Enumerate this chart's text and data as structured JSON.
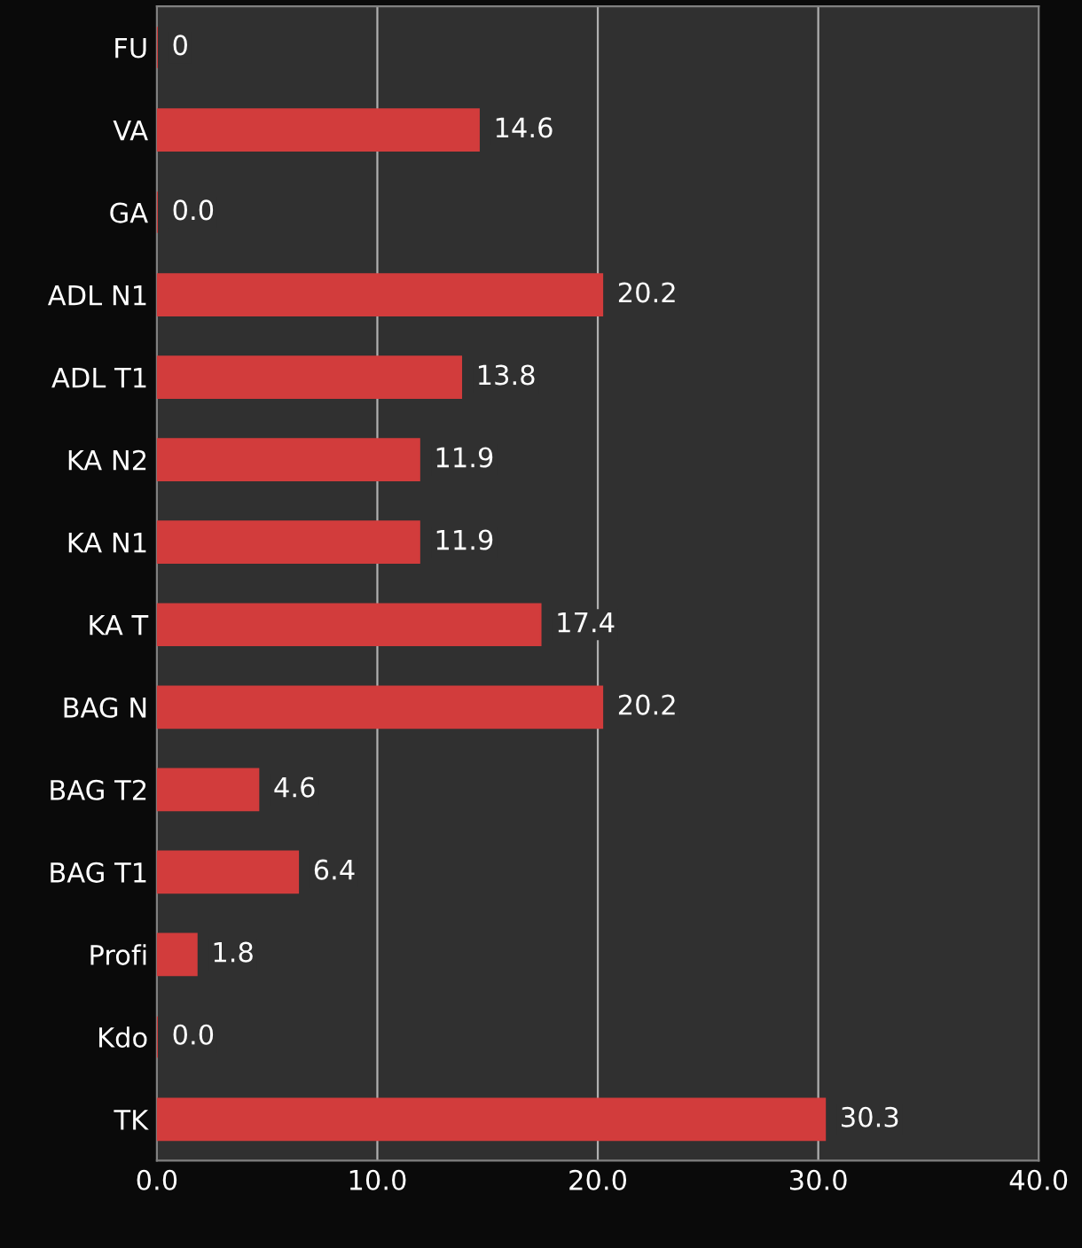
{
  "chart_data": {
    "type": "bar",
    "orientation": "horizontal",
    "categories": [
      "FU",
      "VA",
      "GA",
      "ADL N1",
      "ADL T1",
      "KA N2",
      "KA N1",
      "KA T",
      "BAG N",
      "BAG T2",
      "BAG T1",
      "Profi",
      "Kdo",
      "TK"
    ],
    "values": [
      0,
      14.6,
      0.0,
      20.2,
      13.8,
      11.9,
      11.9,
      17.4,
      20.2,
      4.6,
      6.4,
      1.8,
      0.0,
      30.3
    ],
    "value_labels": [
      "0",
      "14.6",
      "0.0",
      "20.2",
      "13.8",
      "11.9",
      "11.9",
      "17.4",
      "20.2",
      "4.6",
      "6.4",
      "1.8",
      "0.0",
      "30.3"
    ],
    "color": "#d23c3c",
    "xlim": [
      0,
      40
    ],
    "xticks": [
      {
        "value": 0,
        "label": "0.0"
      },
      {
        "value": 10,
        "label": "10.0"
      },
      {
        "value": 20,
        "label": "20.0"
      },
      {
        "value": 30,
        "label": "30.0"
      },
      {
        "value": 40,
        "label": "40.0"
      }
    ],
    "grid": "x",
    "legend": false
  }
}
